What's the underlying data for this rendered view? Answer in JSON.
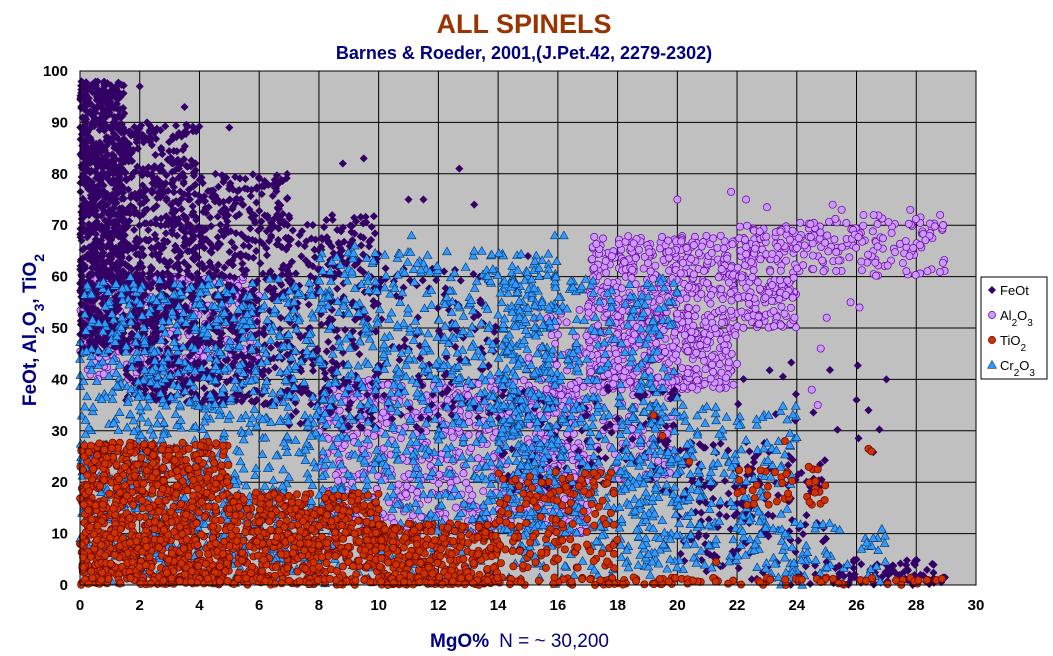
{
  "chart_data": {
    "type": "scatter",
    "title": "ALL SPINELS",
    "subtitle": "Barnes & Roeder, 2001,(J.Pet.42, 2279-2302)",
    "xlabel_main": "MgO%",
    "xlabel_note": "N = ~ 30,200",
    "ylabel": {
      "pre": "FeOt, Al",
      "sub1": "2",
      "mid1": "O",
      "sub2": "3",
      "mid2": ", TiO",
      "sub3": "2"
    },
    "xlim": [
      0,
      30
    ],
    "ylim": [
      0,
      100
    ],
    "x_ticks": [
      "0",
      "2",
      "4",
      "6",
      "8",
      "10",
      "12",
      "14",
      "16",
      "18",
      "20",
      "22",
      "24",
      "26",
      "28",
      "30"
    ],
    "y_ticks": [
      "0",
      "10",
      "20",
      "30",
      "40",
      "50",
      "60",
      "70",
      "80",
      "90",
      "100"
    ],
    "grid": true,
    "legend_position": "right",
    "colors": {
      "plot_bg": "#c0c0c0",
      "title": "#993300",
      "subtitle": "#000080",
      "axis_label": "#000080",
      "FeOt": "#330066",
      "Al2O3_fill": "#cc99ff",
      "Al2O3_stroke": "#660099",
      "TiO2_fill": "#cc3300",
      "TiO2_stroke": "#660000",
      "Cr2O3_fill": "#3399ff",
      "Cr2O3_stroke": "#003366"
    },
    "series": [
      {
        "name": "FeOt",
        "label": {
          "base": "FeOt",
          "sub": "",
          "tail": "",
          "sub2": ""
        },
        "marker": "diamond",
        "clusters": [
          {
            "n": 900,
            "x": [
              0,
              1.5
            ],
            "y": [
              45,
              98
            ]
          },
          {
            "n": 700,
            "x": [
              1.5,
              4
            ],
            "y": [
              35,
              90
            ]
          },
          {
            "n": 500,
            "x": [
              4,
              7
            ],
            "y": [
              35,
              80
            ]
          },
          {
            "n": 300,
            "x": [
              7,
              10
            ],
            "y": [
              30,
              72
            ]
          },
          {
            "n": 120,
            "x": [
              10,
              14
            ],
            "y": [
              30,
              62
            ]
          },
          {
            "n": 120,
            "x": [
              14,
              20
            ],
            "y": [
              18,
              40
            ]
          },
          {
            "n": 160,
            "x": [
              20,
              25
            ],
            "y": [
              0,
              28
            ]
          },
          {
            "n": 80,
            "x": [
              25,
              29
            ],
            "y": [
              0,
              5
            ]
          },
          {
            "n": 20,
            "x": [
              22,
              27
            ],
            "y": [
              25,
              44
            ]
          }
        ],
        "points": [
          [
            1,
            96
          ],
          [
            2,
            97
          ],
          [
            3.5,
            93
          ],
          [
            5,
            89
          ],
          [
            8.8,
            82
          ],
          [
            9.5,
            83
          ],
          [
            12.7,
            81
          ],
          [
            11,
            75
          ],
          [
            11.5,
            75
          ],
          [
            13.2,
            74
          ],
          [
            15,
            64
          ],
          [
            26.4,
            34
          ],
          [
            27,
            40
          ],
          [
            26,
            36
          ]
        ]
      },
      {
        "name": "Al2O3",
        "label": {
          "base": "Al",
          "sub": "2",
          "tail": "O",
          "sub2": "3"
        },
        "marker": "circle",
        "clusters": [
          {
            "n": 700,
            "x": [
              17,
              22
            ],
            "y": [
              38,
              68
            ]
          },
          {
            "n": 200,
            "x": [
              22,
              24
            ],
            "y": [
              50,
              70
            ]
          },
          {
            "n": 150,
            "x": [
              24,
              29
            ],
            "y": [
              60,
              72
            ]
          },
          {
            "n": 600,
            "x": [
              8,
              17
            ],
            "y": [
              10,
              40
            ]
          },
          {
            "n": 300,
            "x": [
              0,
              6
            ],
            "y": [
              40,
              60
            ]
          },
          {
            "n": 250,
            "x": [
              15,
              20
            ],
            "y": [
              20,
              55
            ]
          }
        ],
        "points": [
          [
            20,
            75
          ],
          [
            21.8,
            76.5
          ],
          [
            22.3,
            75
          ],
          [
            25.5,
            73
          ],
          [
            25.2,
            74
          ],
          [
            28.8,
            72
          ],
          [
            27.8,
            73
          ],
          [
            28.9,
            70
          ],
          [
            23,
            73.5
          ],
          [
            25,
            52
          ],
          [
            25.8,
            55
          ],
          [
            24.8,
            46
          ],
          [
            24.5,
            38
          ],
          [
            24.7,
            35
          ],
          [
            26.1,
            54
          ]
        ]
      },
      {
        "name": "TiO2",
        "label": {
          "base": "TiO",
          "sub": "2",
          "tail": "",
          "sub2": ""
        },
        "marker": "circle",
        "clusters": [
          {
            "n": 900,
            "x": [
              0,
              5
            ],
            "y": [
              0,
              28
            ]
          },
          {
            "n": 500,
            "x": [
              5,
              10
            ],
            "y": [
              0,
              18
            ]
          },
          {
            "n": 300,
            "x": [
              10,
              14
            ],
            "y": [
              0,
              12
            ]
          },
          {
            "n": 150,
            "x": [
              14,
              18
            ],
            "y": [
              3,
              22
            ]
          },
          {
            "n": 200,
            "x": [
              0,
              29
            ],
            "y": [
              0,
              1.5
            ]
          },
          {
            "n": 40,
            "x": [
              22,
              25
            ],
            "y": [
              15,
              23
            ]
          }
        ],
        "points": [
          [
            23.6,
            28
          ],
          [
            24.4,
            23
          ],
          [
            24.7,
            22.5
          ],
          [
            26.4,
            26.5
          ],
          [
            26.5,
            26
          ],
          [
            19.2,
            33
          ],
          [
            19.5,
            29
          ],
          [
            20.4,
            24
          ],
          [
            21.3,
            4.5
          ]
        ]
      },
      {
        "name": "Cr2O3",
        "label": {
          "base": "Cr",
          "sub": "2",
          "tail": "O",
          "sub2": "3"
        },
        "marker": "triangle",
        "clusters": [
          {
            "n": 900,
            "x": [
              0,
              8
            ],
            "y": [
              5,
              60
            ]
          },
          {
            "n": 800,
            "x": [
              8,
              16
            ],
            "y": [
              10,
              65
            ]
          },
          {
            "n": 500,
            "x": [
              14,
              20
            ],
            "y": [
              10,
              60
            ]
          },
          {
            "n": 300,
            "x": [
              18,
              24
            ],
            "y": [
              3,
              35
            ]
          },
          {
            "n": 200,
            "x": [
              0,
              20
            ],
            "y": [
              0,
              10
            ]
          },
          {
            "n": 60,
            "x": [
              23,
              27
            ],
            "y": [
              0,
              12
            ]
          }
        ],
        "points": [
          [
            11.1,
            68
          ],
          [
            15.9,
            68
          ],
          [
            16.2,
            68
          ],
          [
            9.2,
            66
          ],
          [
            13.2,
            65
          ],
          [
            21.3,
            32
          ],
          [
            25.1,
            12
          ]
        ]
      }
    ]
  }
}
